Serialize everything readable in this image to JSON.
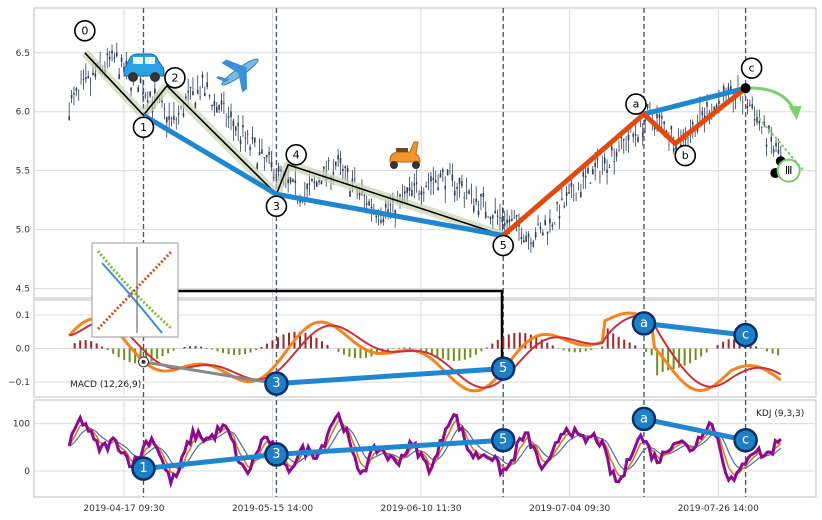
{
  "chart_data": [
    {
      "type": "candlestick",
      "panel": "price",
      "ylim": [
        4.42,
        6.88
      ],
      "yticks": [
        "4.5",
        "5.0",
        "5.5",
        "6.0",
        "6.5"
      ],
      "ytick_values": [
        4.5,
        5.0,
        5.5,
        6.0,
        6.5
      ],
      "close_path": [
        6.05,
        6.2,
        6.35,
        6.45,
        6.3,
        6.2,
        6.05,
        5.9,
        6.1,
        6.2,
        6.05,
        5.9,
        5.75,
        5.6,
        5.5,
        5.35,
        5.3,
        5.45,
        5.55,
        5.4,
        5.25,
        5.15,
        5.2,
        5.3,
        5.4,
        5.45,
        5.4,
        5.3,
        5.2,
        5.1,
        5.05,
        4.95,
        5.0,
        5.15,
        5.3,
        5.45,
        5.55,
        5.7,
        5.8,
        5.95,
        5.9,
        5.75,
        5.85,
        6.0,
        6.1,
        6.15,
        6.05,
        5.8,
        5.6
      ],
      "wave_points": [
        {
          "label": "0",
          "x": 0.065,
          "y": 6.5
        },
        {
          "label": "1",
          "x": 0.14,
          "y": 5.97
        },
        {
          "label": "2",
          "x": 0.17,
          "y": 6.22
        },
        {
          "label": "3",
          "x": 0.31,
          "y": 5.3
        },
        {
          "label": "4",
          "x": 0.325,
          "y": 5.55
        },
        {
          "label": "5",
          "x": 0.6,
          "y": 4.95
        },
        {
          "label": "a",
          "x": 0.78,
          "y": 5.98
        },
        {
          "label": "b",
          "x": 0.82,
          "y": 5.73
        },
        {
          "label": "c",
          "x": 0.91,
          "y": 6.2
        }
      ],
      "wave_labels": [
        "0",
        "1",
        "2",
        "3",
        "4",
        "5",
        "a",
        "b",
        "c"
      ],
      "subwave_label": "Ⅲ",
      "blue_trend": [
        [
          0.14,
          5.97
        ],
        [
          0.31,
          5.3
        ],
        [
          0.6,
          4.95
        ]
      ],
      "red_trend": [
        [
          0.6,
          4.95
        ],
        [
          0.78,
          5.98
        ],
        [
          0.82,
          5.73
        ],
        [
          0.91,
          6.2
        ]
      ],
      "blue_trend2": [
        [
          0.78,
          5.98
        ],
        [
          0.91,
          6.2
        ]
      ],
      "colors": {
        "candle": "#2f3e5a",
        "blue": "#1f86d1",
        "red": "#e04a0e",
        "black": "#000000",
        "green": "#7ccf6a"
      }
    },
    {
      "type": "macd",
      "panel": "macd",
      "label": "MACD (12,26,9)",
      "ylim": [
        -0.145,
        0.145
      ],
      "yticks": [
        "0.1",
        "0.0",
        "−0.1"
      ],
      "ytick_values": [
        0.1,
        0.0,
        -0.1
      ],
      "points": [
        {
          "label": "3",
          "x": 0.31,
          "y": -0.105
        },
        {
          "label": "5",
          "x": 0.6,
          "y": -0.06
        },
        {
          "label": "a",
          "x": 0.78,
          "y": 0.075
        },
        {
          "label": "c",
          "x": 0.91,
          "y": 0.04
        }
      ],
      "grey_start": {
        "x": 0.14,
        "y": -0.04
      },
      "colors": {
        "dif": "#f7831f",
        "dea": "#c8323a",
        "hist_pos": "#a0262b",
        "hist_neg": "#6d8f1e",
        "trend": "#1f86d1"
      }
    },
    {
      "type": "kdj",
      "panel": "kdj",
      "label": "KDJ (9,3,3)",
      "ylim": [
        -55,
        150
      ],
      "yticks": [
        "100",
        "0"
      ],
      "ytick_values": [
        100,
        0
      ],
      "points": [
        {
          "label": "1",
          "x": 0.14,
          "y": 5
        },
        {
          "label": "3",
          "x": 0.31,
          "y": 35
        },
        {
          "label": "5",
          "x": 0.6,
          "y": 65
        },
        {
          "label": "a",
          "x": 0.78,
          "y": 110
        },
        {
          "label": "c",
          "x": 0.91,
          "y": 65
        }
      ],
      "colors": {
        "j": "#8b0a8f",
        "k": "#d67a2a",
        "d": "#4a6fa5",
        "trend": "#1f86d1"
      }
    }
  ],
  "x_axis": {
    "ticks": [
      "2019-04-17 09:30",
      "2019-05-15 14:00",
      "2019-06-10 11:30",
      "2019-07-04 09:30",
      "2019-07-26 14:00"
    ],
    "tick_values": [
      0.115,
      0.305,
      0.495,
      0.685,
      0.875
    ],
    "vlines": [
      0.14,
      0.31,
      0.6,
      0.78,
      0.91
    ]
  },
  "icons": [
    "car-icon",
    "airplane-icon",
    "scooter-icon",
    "thumbnail-chart-icon"
  ]
}
